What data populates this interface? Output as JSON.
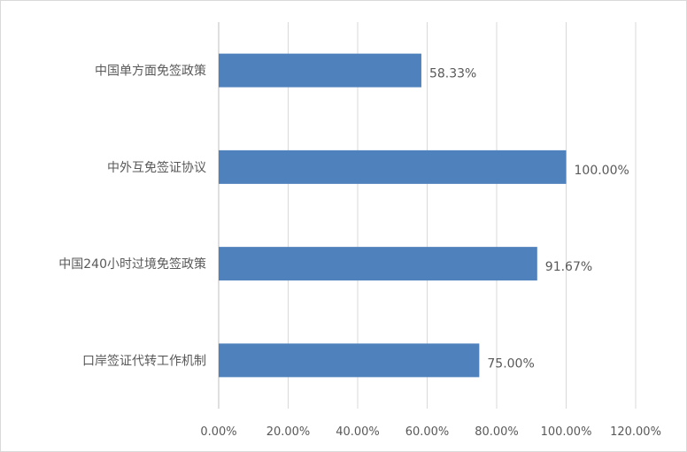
{
  "chart_data": {
    "type": "bar",
    "orientation": "horizontal",
    "categories": [
      "中国单方面免签政策",
      "中外互免签证协议",
      "中国240小时过境免签政策",
      "口岸签证代转工作机制"
    ],
    "values": [
      58.33,
      100.0,
      91.67,
      75.0
    ],
    "data_labels": [
      "58.33%",
      "100.00%",
      "91.67%",
      "75.00%"
    ],
    "xlim": [
      0,
      120
    ],
    "xticks": [
      0,
      20,
      40,
      60,
      80,
      100,
      120
    ],
    "xtick_labels": [
      "0.00%",
      "20.00%",
      "40.00%",
      "60.00%",
      "80.00%",
      "100.00%",
      "120.00%"
    ],
    "title": "",
    "xlabel": "",
    "ylabel": "",
    "grid": "vertical",
    "legend": "none",
    "bar_color": "#4f81bd"
  }
}
